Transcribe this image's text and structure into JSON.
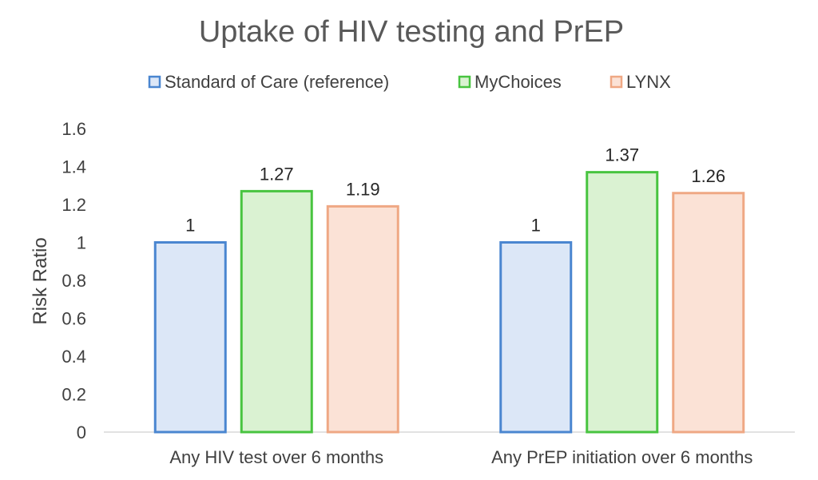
{
  "chart_data": {
    "type": "bar",
    "title": "Uptake of HIV testing and PrEP",
    "xlabel": "",
    "ylabel": "Risk Ratio",
    "ylim": [
      0,
      1.6
    ],
    "yticks": [
      "0",
      "0.2",
      "0.4",
      "0.6",
      "0.8",
      "1",
      "1.2",
      "1.4",
      "1.6"
    ],
    "categories": [
      "Any HIV test over 6 months",
      "Any PrEP initiation over 6 months"
    ],
    "series": [
      {
        "name": "Standard of Care (reference)",
        "values": [
          1,
          1
        ],
        "labels": [
          "1",
          "1"
        ],
        "fill": "#dce7f7",
        "stroke": "#4a86d0"
      },
      {
        "name": "MyChoices",
        "values": [
          1.27,
          1.37
        ],
        "labels": [
          "1.27",
          "1.37"
        ],
        "fill": "#daf2d2",
        "stroke": "#48c440"
      },
      {
        "name": "LYNX",
        "values": [
          1.19,
          1.26
        ],
        "labels": [
          "1.19",
          "1.26"
        ],
        "fill": "#fbe2d6",
        "stroke": "#efa884"
      }
    ],
    "legend": "top",
    "grid": false
  }
}
